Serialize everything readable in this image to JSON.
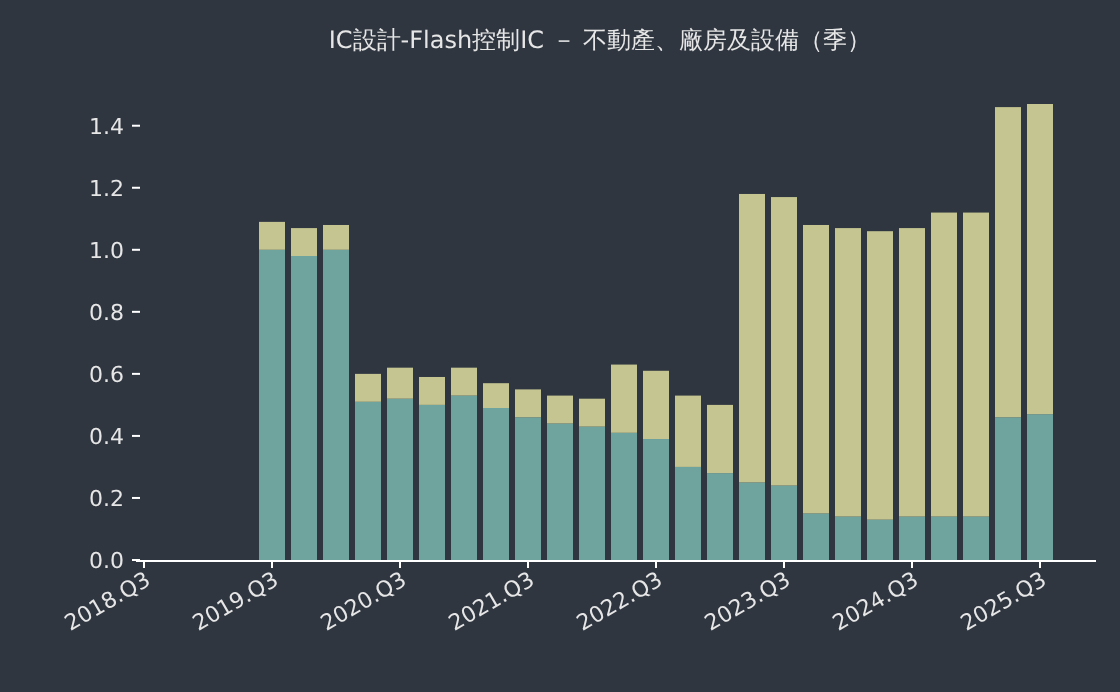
{
  "chart_data": {
    "type": "bar",
    "stacked": true,
    "title": "IC設計-Flash控制IC － 不動產、廠房及設備（季）",
    "categories": [
      "2018.Q3",
      null,
      null,
      null,
      "2019.Q3",
      null,
      null,
      null,
      "2020.Q3",
      null,
      null,
      null,
      "2021.Q3",
      null,
      null,
      null,
      "2022.Q3",
      null,
      null,
      null,
      "2023.Q3",
      null,
      null,
      null,
      "2024.Q3",
      null,
      null,
      null,
      "2025.Q3"
    ],
    "series": [
      {
        "color": "#6fa39e",
        "values": [
          null,
          null,
          null,
          null,
          1.0,
          0.98,
          1.0,
          0.51,
          0.52,
          0.5,
          0.53,
          0.49,
          0.46,
          0.44,
          0.43,
          0.41,
          0.39,
          0.3,
          0.28,
          0.25,
          0.24,
          0.15,
          0.14,
          0.13,
          0.14,
          0.14,
          0.14,
          0.46,
          0.47
        ]
      },
      {
        "color": "#c4c591",
        "values": [
          null,
          null,
          null,
          null,
          0.09,
          0.09,
          0.08,
          0.09,
          0.1,
          0.09,
          0.09,
          0.08,
          0.09,
          0.09,
          0.09,
          0.22,
          0.22,
          0.23,
          0.22,
          0.93,
          0.93,
          0.93,
          0.93,
          0.93,
          0.93,
          0.98,
          0.98,
          1.0,
          1.0
        ]
      }
    ],
    "yticks": [
      {
        "value": 0,
        "label": "0.0"
      },
      {
        "value": 0.2,
        "label": "0.2"
      },
      {
        "value": 0.4,
        "label": "0.4"
      },
      {
        "value": 0.6,
        "label": "0.6"
      },
      {
        "value": 0.8,
        "label": "0.8"
      },
      {
        "value": 1.0,
        "label": "1.0"
      },
      {
        "value": 1.2,
        "label": "1.2"
      },
      {
        "value": 1.4,
        "label": "1.4"
      }
    ],
    "ylim": [
      0,
      1.47
    ],
    "grid": false
  }
}
